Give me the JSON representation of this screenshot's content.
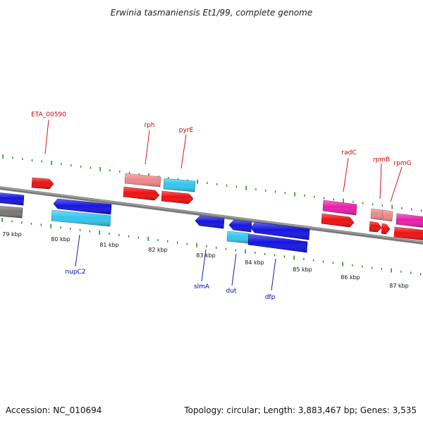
{
  "title": "Erwinia tasmaniensis Et1/99, complete genome",
  "footer": {
    "accession": "Accession: NC_010694",
    "info": "Topology: circular; Length: 3,883,467 bp; Genes: 3,535"
  },
  "colors": {
    "backbone": "#888888",
    "tick_minor": "#2e8b2e",
    "tick_major": "#2e8b2e",
    "label_top": "#cc0000",
    "label_bottom": "#0000aa",
    "blue": "#1515e0",
    "cyan": "#33c6ee",
    "red": "#ee1111",
    "salmon": "#ee8888",
    "magenta": "#e81eaa",
    "gray": "#777777"
  },
  "kbp_ticks": [
    "79 kbp",
    "80 kbp",
    "81 kbp",
    "82 kbp",
    "83 kbp",
    "84 kbp",
    "85 kbp",
    "86 kbp",
    "87 kbp"
  ],
  "gene_labels": {
    "ETA_00590": "ETA_00590",
    "rph": "rph",
    "pyrE": "pyrE",
    "radC": "radC",
    "rpmB": "rpmB",
    "rpmG": "rpmG",
    "nupC2": "nupC2",
    "slmA": "slmA",
    "dut": "dut",
    "dfp": "dfp"
  }
}
